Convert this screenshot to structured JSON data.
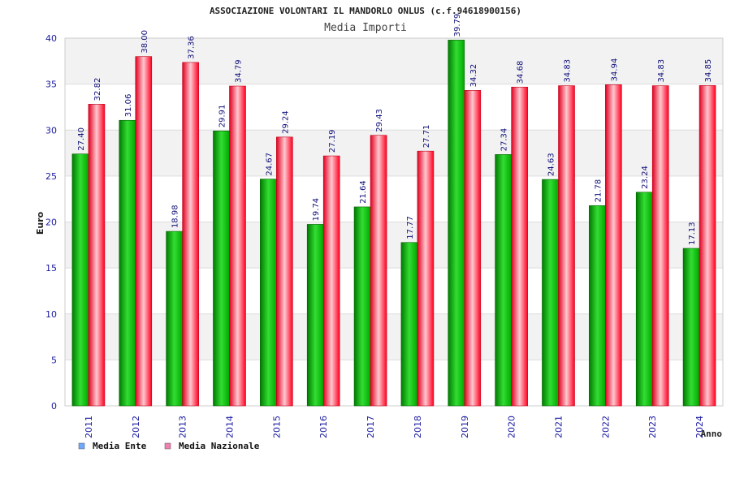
{
  "chart_data": {
    "type": "bar",
    "title": "ASSOCIAZIONE VOLONTARI IL MANDORLO ONLUS (c.f.94618900156)",
    "subtitle": "Media Importi",
    "xlabel": "Anno",
    "ylabel": "Euro",
    "ylim": [
      0,
      40
    ],
    "yticks": [
      "0",
      "5",
      "10",
      "15",
      "20",
      "25",
      "30",
      "35",
      "40"
    ],
    "grid": true,
    "legend_position": "bottom-left",
    "categories": [
      "2011",
      "2012",
      "2013",
      "2014",
      "2015",
      "2016",
      "2017",
      "2018",
      "2019",
      "2020",
      "2021",
      "2022",
      "2023",
      "2024"
    ],
    "series": [
      {
        "name": "Media Ente",
        "color": "#00c000",
        "legend_color": "#6fa8ff",
        "values": [
          27.4,
          31.06,
          18.98,
          29.91,
          24.67,
          19.74,
          21.64,
          17.77,
          39.79,
          27.34,
          24.63,
          21.78,
          23.24,
          17.13
        ],
        "labels": [
          "27.40",
          "31.06",
          "18.98",
          "29.91",
          "24.67",
          "19.74",
          "21.64",
          "17.77",
          "39.79",
          "27.34",
          "24.63",
          "21.78",
          "23.24",
          "17.13"
        ]
      },
      {
        "name": "Media Nazionale",
        "color": "#ff1f3f",
        "legend_color": "#f080b0",
        "values": [
          32.82,
          38.0,
          37.36,
          34.79,
          29.24,
          27.19,
          29.43,
          27.71,
          34.32,
          34.68,
          34.83,
          34.94,
          34.83,
          34.85
        ],
        "labels": [
          "32.82",
          "38.00",
          "37.36",
          "34.79",
          "29.24",
          "27.19",
          "29.43",
          "27.71",
          "34.32",
          "34.68",
          "34.83",
          "34.94",
          "34.83",
          "34.85"
        ]
      }
    ]
  }
}
